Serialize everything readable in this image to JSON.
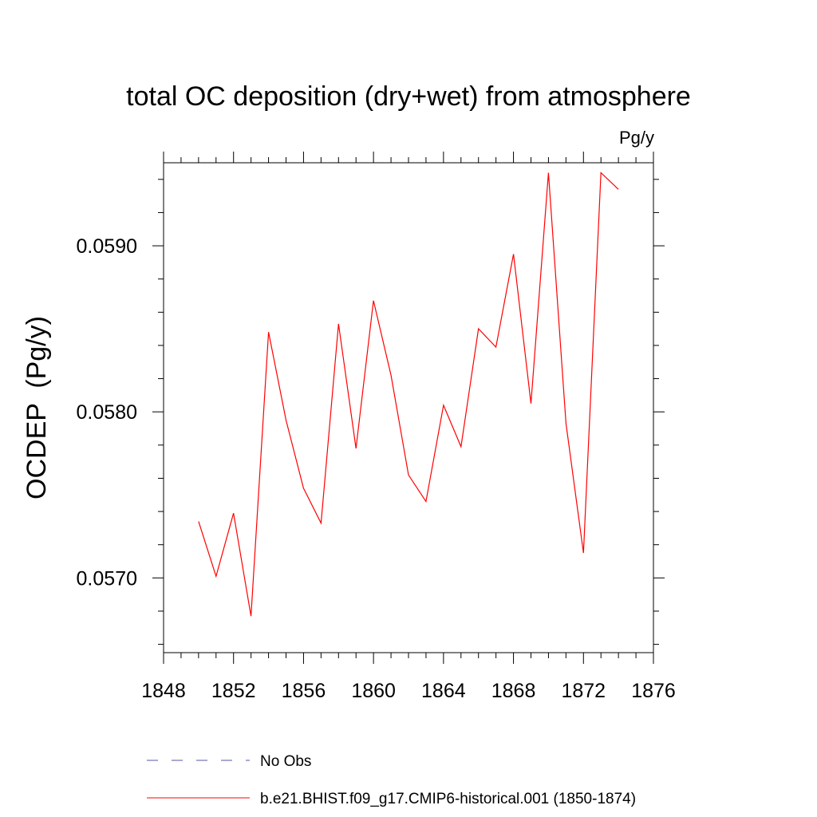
{
  "chart_data": {
    "type": "line",
    "title": "total OC deposition (dry+wet) from atmosphere",
    "units_label": "Pg/y",
    "ylabel": "OCDEP  (Pg/y)",
    "xlabel": "",
    "xlim": [
      1848,
      1876
    ],
    "ylim": [
      0.05655,
      0.0595
    ],
    "x_ticks": [
      1848,
      1852,
      1856,
      1860,
      1864,
      1868,
      1872,
      1876
    ],
    "y_ticks": [
      "0.0570",
      "0.0580",
      "0.0590"
    ],
    "y_tick_values": [
      0.057,
      0.058,
      0.059
    ],
    "grid": false,
    "legend_position": "bottom",
    "series": [
      {
        "name": "b.e21.BHIST.f09_g17.CMIP6-historical.001 (1850-1874)",
        "color": "#ff0000",
        "dash": "solid",
        "x": [
          1850,
          1851,
          1852,
          1853,
          1854,
          1855,
          1856,
          1857,
          1858,
          1859,
          1860,
          1861,
          1862,
          1863,
          1864,
          1865,
          1866,
          1867,
          1868,
          1869,
          1870,
          1871,
          1872,
          1873,
          1874
        ],
        "values": [
          0.05734,
          0.05701,
          0.05739,
          0.05677,
          0.05848,
          0.05795,
          0.05754,
          0.05733,
          0.05853,
          0.05778,
          0.05867,
          0.05822,
          0.05762,
          0.05746,
          0.05804,
          0.05779,
          0.0585,
          0.05839,
          0.05895,
          0.05805,
          0.05944,
          0.05793,
          0.05715,
          0.05944,
          0.05934
        ]
      }
    ],
    "legend": [
      {
        "label": "No Obs",
        "color": "#5555aa",
        "dash": "dashed"
      },
      {
        "label": "b.e21.BHIST.f09_g17.CMIP6-historical.001 (1850-1874)",
        "color": "#ff0000",
        "dash": "solid"
      }
    ]
  }
}
